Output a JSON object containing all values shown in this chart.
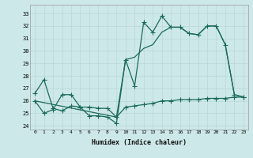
{
  "xlabel": "Humidex (Indice chaleur)",
  "background_color": "#cde8e8",
  "grid_color": "#b8d8d8",
  "line_color": "#1a6b5a",
  "xlim": [
    -0.5,
    23.5
  ],
  "ylim": [
    23.7,
    33.7
  ],
  "yticks": [
    24,
    25,
    26,
    27,
    28,
    29,
    30,
    31,
    32,
    33
  ],
  "xticks": [
    0,
    1,
    2,
    3,
    4,
    5,
    6,
    7,
    8,
    9,
    10,
    11,
    12,
    13,
    14,
    15,
    16,
    17,
    18,
    19,
    20,
    21,
    22,
    23
  ],
  "series1_x": [
    0,
    1,
    2,
    3,
    4,
    5,
    6,
    7,
    8,
    9,
    10,
    11,
    12,
    13,
    14,
    15,
    16,
    17,
    18,
    19,
    20,
    21,
    22,
    23
  ],
  "series1_y": [
    26.6,
    27.7,
    25.4,
    25.2,
    25.6,
    25.5,
    24.8,
    24.8,
    24.7,
    24.2,
    29.3,
    27.2,
    32.3,
    31.5,
    32.8,
    31.9,
    31.9,
    31.4,
    31.3,
    32.0,
    32.0,
    30.5,
    26.5,
    26.3
  ],
  "series2_x": [
    0,
    1,
    2,
    3,
    4,
    5,
    6,
    7,
    8,
    9,
    10,
    11,
    12,
    13,
    14,
    15,
    16,
    17,
    18,
    19,
    20,
    21,
    22,
    23
  ],
  "series2_y": [
    26.0,
    25.0,
    25.3,
    26.5,
    26.5,
    25.5,
    25.5,
    25.4,
    25.4,
    24.7,
    25.5,
    25.6,
    25.7,
    25.8,
    26.0,
    26.0,
    26.1,
    26.1,
    26.1,
    26.2,
    26.2,
    26.2,
    26.3,
    26.3
  ],
  "series3_x": [
    0,
    9,
    10,
    11,
    12,
    13,
    14,
    15,
    16,
    17,
    18,
    19,
    20,
    21,
    22,
    23
  ],
  "series3_y": [
    26.0,
    24.7,
    29.3,
    29.5,
    30.2,
    30.5,
    31.5,
    31.9,
    31.9,
    31.4,
    31.3,
    32.0,
    32.0,
    30.5,
    26.5,
    26.3
  ]
}
